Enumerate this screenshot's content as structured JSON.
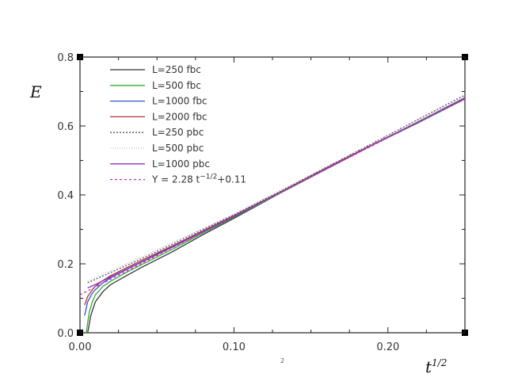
{
  "chart_data": {
    "type": "line",
    "title": "",
    "xlabel": "t",
    "xlabel_sup": "1/2",
    "ylabel": "E",
    "stray_label": "2",
    "xlim": [
      0.0,
      0.25
    ],
    "ylim": [
      0.0,
      0.8
    ],
    "x_ticks": [
      {
        "value": 0.0,
        "label": "0.00"
      },
      {
        "value": 0.1,
        "label": "0.10"
      },
      {
        "value": 0.2,
        "label": "0.20"
      }
    ],
    "y_ticks": [
      {
        "value": 0.0,
        "label": "0.0"
      },
      {
        "value": 0.2,
        "label": "0.2"
      },
      {
        "value": 0.4,
        "label": "0.4"
      },
      {
        "value": 0.6,
        "label": "0.6"
      },
      {
        "value": 0.8,
        "label": "0.8"
      }
    ],
    "grid": false,
    "legend_position": "top-left",
    "series": [
      {
        "name": "L=250 fbc",
        "color": "#333333",
        "dash": "",
        "x": [
          0.005,
          0.007,
          0.01,
          0.015,
          0.02,
          0.03,
          0.04,
          0.06,
          0.08,
          0.1,
          0.13,
          0.16,
          0.19,
          0.22,
          0.25
        ],
        "y": [
          0.0,
          0.05,
          0.09,
          0.12,
          0.14,
          0.165,
          0.19,
          0.235,
          0.285,
          0.332,
          0.405,
          0.475,
          0.545,
          0.61,
          0.68
        ]
      },
      {
        "name": "L=500 fbc",
        "color": "#33aa33",
        "dash": "",
        "x": [
          0.004,
          0.006,
          0.008,
          0.01,
          0.015,
          0.02,
          0.03,
          0.04,
          0.06,
          0.08,
          0.1,
          0.13,
          0.16,
          0.19,
          0.22,
          0.25
        ],
        "y": [
          0.0,
          0.06,
          0.09,
          0.11,
          0.135,
          0.15,
          0.175,
          0.198,
          0.242,
          0.29,
          0.335,
          0.405,
          0.475,
          0.545,
          0.61,
          0.678
        ]
      },
      {
        "name": "L=1000 fbc",
        "color": "#3355cc",
        "dash": "",
        "x": [
          0.003,
          0.005,
          0.008,
          0.01,
          0.015,
          0.02,
          0.03,
          0.04,
          0.06,
          0.08,
          0.1,
          0.13,
          0.16,
          0.19,
          0.22,
          0.25
        ],
        "y": [
          0.05,
          0.09,
          0.115,
          0.125,
          0.145,
          0.16,
          0.183,
          0.205,
          0.248,
          0.293,
          0.337,
          0.407,
          0.477,
          0.545,
          0.612,
          0.679
        ]
      },
      {
        "name": "L=2000 fbc",
        "color": "#aa3333",
        "dash": "",
        "x": [
          0.003,
          0.005,
          0.008,
          0.01,
          0.015,
          0.02,
          0.03,
          0.04,
          0.06,
          0.08,
          0.1,
          0.13,
          0.16,
          0.19,
          0.22,
          0.25
        ],
        "y": [
          0.08,
          0.105,
          0.125,
          0.135,
          0.152,
          0.166,
          0.188,
          0.21,
          0.252,
          0.296,
          0.34,
          0.408,
          0.478,
          0.546,
          0.613,
          0.68
        ]
      },
      {
        "name": "L=250 pbc",
        "color": "#555555",
        "dash": "2,2",
        "x": [
          0.005,
          0.01,
          0.02,
          0.03,
          0.04,
          0.06,
          0.08,
          0.1,
          0.13,
          0.16,
          0.19,
          0.22,
          0.25
        ],
        "y": [
          0.145,
          0.155,
          0.175,
          0.195,
          0.215,
          0.257,
          0.3,
          0.342,
          0.41,
          0.48,
          0.55,
          0.62,
          0.69
        ]
      },
      {
        "name": "L=500 pbc",
        "color": "#bbbbbb",
        "dash": "1,2",
        "x": [
          0.005,
          0.01,
          0.02,
          0.03,
          0.04,
          0.06,
          0.08,
          0.1,
          0.13,
          0.16,
          0.19,
          0.22,
          0.25
        ],
        "y": [
          0.15,
          0.16,
          0.18,
          0.2,
          0.22,
          0.262,
          0.303,
          0.345,
          0.413,
          0.482,
          0.55,
          0.618,
          0.685
        ]
      },
      {
        "name": "L=1000 pbc",
        "color": "#8833cc",
        "dash": "",
        "x": [
          0.005,
          0.01,
          0.02,
          0.03,
          0.04,
          0.06,
          0.08,
          0.1,
          0.13,
          0.16,
          0.19,
          0.22,
          0.25
        ],
        "y": [
          0.13,
          0.14,
          0.162,
          0.184,
          0.206,
          0.25,
          0.294,
          0.338,
          0.407,
          0.476,
          0.545,
          0.613,
          0.682
        ]
      },
      {
        "name": "Y = 2.28 t^(-1/2)+0.11",
        "legend_prefix": "Y = 2.28 t",
        "legend_sup": "−1/2",
        "legend_suffix": "+0.11",
        "color": "#cc33aa",
        "dash": "3,3",
        "x": [
          0.0,
          0.25
        ],
        "y": [
          0.11,
          0.68
        ]
      }
    ]
  }
}
